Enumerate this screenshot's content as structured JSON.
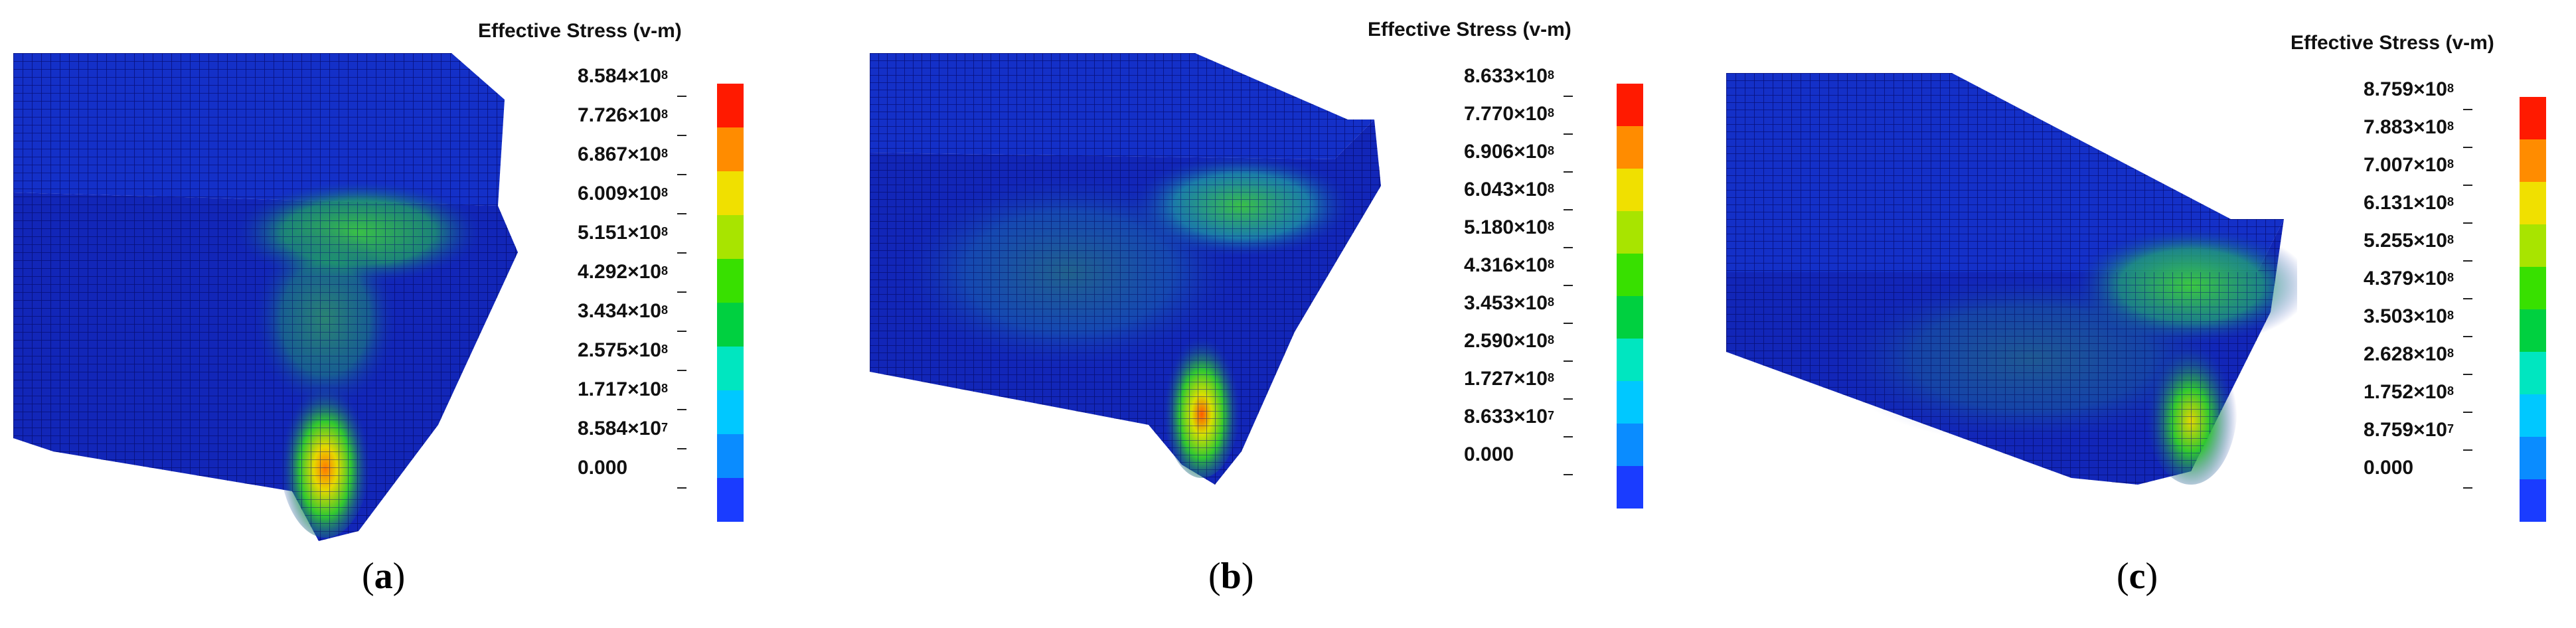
{
  "colors": {
    "scale": [
      "#0a00e0",
      "#1a3cff",
      "#0a8cff",
      "#00c8ff",
      "#00e6c0",
      "#00d040",
      "#38e000",
      "#a8e400",
      "#f0e000",
      "#ff8c00",
      "#ff1a00"
    ],
    "mesh_base": "#1226b8",
    "mesh_dark": "#07107a",
    "stress_green": "#2ec82e",
    "stress_cyan": "#19b4c8",
    "stress_hot": "#ff6a00"
  },
  "panels": [
    {
      "id": "a",
      "caption_letter": "a",
      "legend_title": "Effective Stress (v-m)",
      "legend_values": [
        {
          "mantissa": "8.584",
          "exp": "8"
        },
        {
          "mantissa": "7.726",
          "exp": "8"
        },
        {
          "mantissa": "6.867",
          "exp": "8"
        },
        {
          "mantissa": "6.009",
          "exp": "8"
        },
        {
          "mantissa": "5.151",
          "exp": "8"
        },
        {
          "mantissa": "4.292",
          "exp": "8"
        },
        {
          "mantissa": "3.434",
          "exp": "8"
        },
        {
          "mantissa": "2.575",
          "exp": "8"
        },
        {
          "mantissa": "1.717",
          "exp": "8"
        },
        {
          "mantissa": "8.584",
          "exp": "7"
        },
        {
          "mantissa": "0.000",
          "exp": ""
        }
      ]
    },
    {
      "id": "b",
      "caption_letter": "b",
      "legend_title": "Effective Stress (v-m)",
      "legend_values": [
        {
          "mantissa": "8.633",
          "exp": "8"
        },
        {
          "mantissa": "7.770",
          "exp": "8"
        },
        {
          "mantissa": "6.906",
          "exp": "8"
        },
        {
          "mantissa": "6.043",
          "exp": "8"
        },
        {
          "mantissa": "5.180",
          "exp": "8"
        },
        {
          "mantissa": "4.316",
          "exp": "8"
        },
        {
          "mantissa": "3.453",
          "exp": "8"
        },
        {
          "mantissa": "2.590",
          "exp": "8"
        },
        {
          "mantissa": "1.727",
          "exp": "8"
        },
        {
          "mantissa": "8.633",
          "exp": "7"
        },
        {
          "mantissa": "0.000",
          "exp": ""
        }
      ]
    },
    {
      "id": "c",
      "caption_letter": "c",
      "legend_title": "Effective Stress (v-m)",
      "legend_values": [
        {
          "mantissa": "8.759",
          "exp": "8"
        },
        {
          "mantissa": "7.883",
          "exp": "8"
        },
        {
          "mantissa": "7.007",
          "exp": "8"
        },
        {
          "mantissa": "6.131",
          "exp": "8"
        },
        {
          "mantissa": "5.255",
          "exp": "8"
        },
        {
          "mantissa": "4.379",
          "exp": "8"
        },
        {
          "mantissa": "3.503",
          "exp": "8"
        },
        {
          "mantissa": "2.628",
          "exp": "8"
        },
        {
          "mantissa": "1.752",
          "exp": "8"
        },
        {
          "mantissa": "8.759",
          "exp": "7"
        },
        {
          "mantissa": "0.000",
          "exp": ""
        }
      ]
    }
  ]
}
